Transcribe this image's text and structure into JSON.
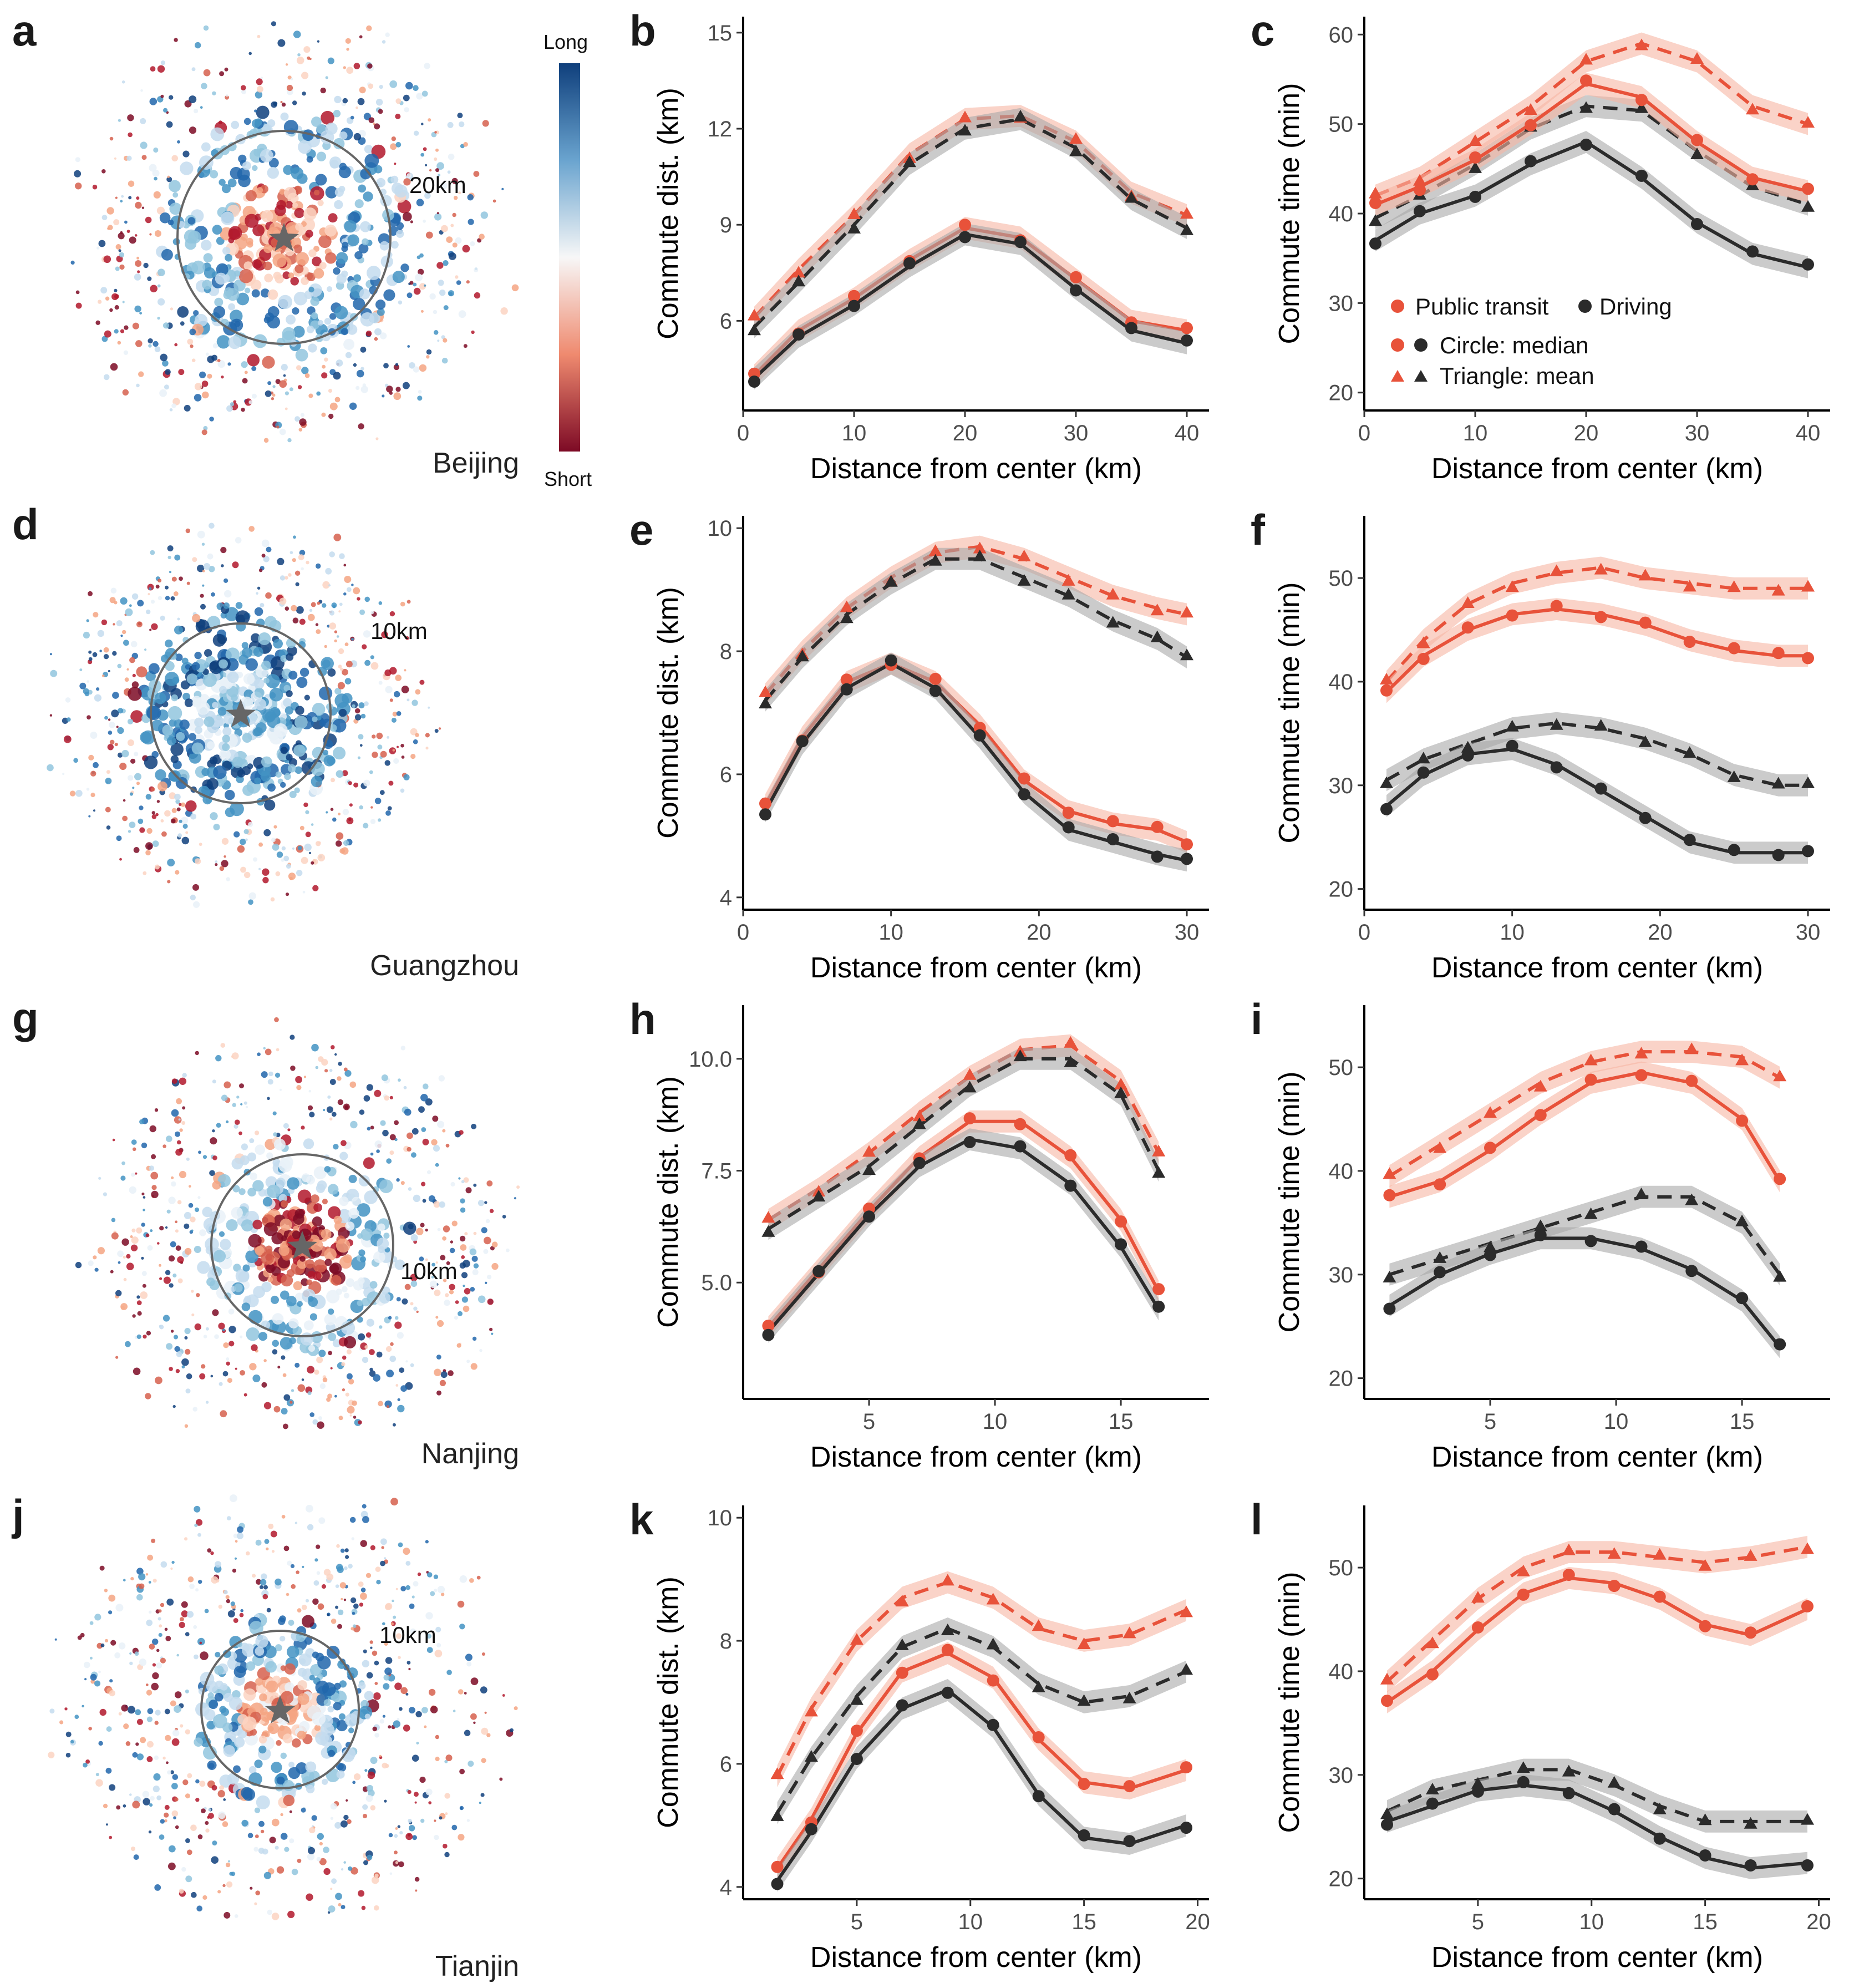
{
  "colors": {
    "transit": "#e8523a",
    "transit_light": "#f7b6a3",
    "driving": "#2b2b2b",
    "driving_light": "#a9a9a9",
    "map_long": "#2166ac",
    "map_short": "#b2182b",
    "circle": "#666666"
  },
  "colorbar": {
    "top_label": "Long",
    "bottom_label": "Short"
  },
  "legend": {
    "public_transit": "Public transit",
    "driving": "Driving",
    "median": "Circle: median",
    "mean": "Triangle: mean"
  },
  "maps": [
    {
      "letter": "a",
      "city": "Beijing",
      "scale": "20km"
    },
    {
      "letter": "d",
      "city": "Guangzhou",
      "scale": "10km"
    },
    {
      "letter": "g",
      "city": "Nanjing",
      "scale": "10km"
    },
    {
      "letter": "j",
      "city": "Tianjin",
      "scale": "10km"
    }
  ],
  "chart_data": [
    {
      "letter": "b",
      "type": "scatter",
      "city": "Beijing",
      "xlabel": "Distance from center (km)",
      "ylabel": "Commute dist. (km)",
      "xlim": [
        0,
        42
      ],
      "ylim": [
        3.2,
        15.5
      ],
      "xticks": [
        0,
        10,
        20,
        30,
        40
      ],
      "yticks": [
        6,
        9,
        12,
        15
      ],
      "ytick_labels": [
        "6",
        "9",
        "12",
        "15"
      ],
      "series": [
        {
          "name": "Public transit mean",
          "x": [
            1,
            5,
            10,
            15,
            20,
            25,
            30,
            35,
            40
          ],
          "y": [
            6.1,
            7.6,
            9.3,
            11.2,
            12.3,
            12.4,
            11.6,
            10.0,
            9.3
          ]
        },
        {
          "name": "Driving mean",
          "x": [
            1,
            5,
            10,
            15,
            20,
            25,
            30,
            35,
            40
          ],
          "y": [
            5.8,
            7.2,
            9.0,
            10.9,
            12.0,
            12.3,
            11.4,
            9.8,
            8.9
          ]
        },
        {
          "name": "Public transit median",
          "x": [
            1,
            5,
            10,
            15,
            20,
            25,
            30,
            35,
            40
          ],
          "y": [
            4.3,
            5.7,
            6.7,
            7.9,
            8.9,
            8.6,
            7.3,
            6.0,
            5.7
          ]
        },
        {
          "name": "Driving median",
          "x": [
            1,
            5,
            10,
            15,
            20,
            25,
            30,
            35,
            40
          ],
          "y": [
            4.2,
            5.5,
            6.5,
            7.7,
            8.7,
            8.4,
            7.0,
            5.7,
            5.3
          ]
        }
      ]
    },
    {
      "letter": "c",
      "type": "scatter",
      "city": "Beijing",
      "xlabel": "Distance from center (km)",
      "ylabel": "Commute time (min)",
      "xlim": [
        0,
        42
      ],
      "ylim": [
        18,
        62
      ],
      "xticks": [
        0,
        10,
        20,
        30,
        40
      ],
      "yticks": [
        20,
        30,
        40,
        50,
        60
      ],
      "ytick_labels": [
        "20",
        "30",
        "40",
        "50",
        "60"
      ],
      "series": [
        {
          "name": "Public transit mean",
          "x": [
            1,
            5,
            10,
            15,
            20,
            25,
            30,
            35,
            40
          ],
          "y": [
            42,
            44,
            48,
            52,
            57,
            59,
            57,
            52,
            50
          ]
        },
        {
          "name": "Driving mean",
          "x": [
            1,
            5,
            10,
            15,
            20,
            25,
            30,
            35,
            40
          ],
          "y": [
            39.5,
            42,
            45.5,
            49.5,
            52,
            51.5,
            47,
            43,
            41
          ]
        },
        {
          "name": "Public transit median",
          "x": [
            1,
            5,
            10,
            15,
            20,
            25,
            30,
            35,
            40
          ],
          "y": [
            41,
            43,
            46,
            50,
            54.5,
            53,
            48,
            44,
            42.5
          ]
        },
        {
          "name": "Driving median",
          "x": [
            1,
            5,
            10,
            15,
            20,
            25,
            30,
            35,
            40
          ],
          "y": [
            37,
            40,
            42,
            45.5,
            48,
            44,
            39,
            35.5,
            34
          ]
        }
      ]
    },
    {
      "letter": "e",
      "type": "scatter",
      "city": "Guangzhou",
      "xlabel": "Distance from center (km)",
      "ylabel": "Commute dist. (km)",
      "xlim": [
        0,
        31.5
      ],
      "ylim": [
        3.8,
        10.2
      ],
      "xticks": [
        0,
        10,
        20,
        30
      ],
      "yticks": [
        4,
        6,
        8,
        10
      ],
      "ytick_labels": [
        "4",
        "6",
        "8",
        "10"
      ],
      "series": [
        {
          "name": "Public transit mean",
          "x": [
            1.5,
            4,
            7,
            10,
            13,
            16,
            19,
            22,
            25,
            28,
            30
          ],
          "y": [
            7.3,
            8.0,
            8.7,
            9.2,
            9.6,
            9.7,
            9.5,
            9.2,
            8.9,
            8.7,
            8.6
          ]
        },
        {
          "name": "Driving mean",
          "x": [
            1.5,
            4,
            7,
            10,
            13,
            16,
            19,
            22,
            25,
            28,
            30
          ],
          "y": [
            7.2,
            7.9,
            8.6,
            9.1,
            9.5,
            9.5,
            9.2,
            8.9,
            8.5,
            8.2,
            7.9
          ]
        },
        {
          "name": "Public transit median",
          "x": [
            1.5,
            4,
            7,
            10,
            13,
            16,
            19,
            22,
            25,
            28,
            30
          ],
          "y": [
            5.5,
            6.6,
            7.5,
            7.8,
            7.5,
            6.8,
            5.9,
            5.4,
            5.2,
            5.1,
            4.9
          ]
        },
        {
          "name": "Driving median",
          "x": [
            1.5,
            4,
            7,
            10,
            13,
            16,
            19,
            22,
            25,
            28,
            30
          ],
          "y": [
            5.4,
            6.5,
            7.4,
            7.8,
            7.4,
            6.6,
            5.7,
            5.1,
            4.9,
            4.7,
            4.6
          ]
        }
      ]
    },
    {
      "letter": "f",
      "type": "scatter",
      "city": "Guangzhou",
      "xlabel": "Distance from center (km)",
      "ylabel": "Commute time (min)",
      "xlim": [
        0,
        31.5
      ],
      "ylim": [
        18,
        56
      ],
      "xticks": [
        0,
        10,
        20,
        30
      ],
      "yticks": [
        20,
        30,
        40,
        50
      ],
      "ytick_labels": [
        "20",
        "30",
        "40",
        "50"
      ],
      "series": [
        {
          "name": "Public transit mean",
          "x": [
            1.5,
            4,
            7,
            10,
            13,
            16,
            19,
            22,
            25,
            28,
            30
          ],
          "y": [
            40,
            44,
            47.5,
            49.5,
            50.5,
            51,
            50,
            49.5,
            49,
            49,
            49
          ]
        },
        {
          "name": "Driving mean",
          "x": [
            1.5,
            4,
            7,
            10,
            13,
            16,
            19,
            22,
            25,
            28,
            30
          ],
          "y": [
            30.5,
            32.5,
            34,
            35.5,
            36,
            35.5,
            34.5,
            33,
            31,
            30,
            30
          ]
        },
        {
          "name": "Public transit median",
          "x": [
            1.5,
            4,
            7,
            10,
            13,
            16,
            19,
            22,
            25,
            28,
            30
          ],
          "y": [
            39,
            42.5,
            45,
            46.5,
            47,
            46.5,
            45.5,
            44,
            43,
            42.5,
            42.5
          ]
        },
        {
          "name": "Driving median",
          "x": [
            1.5,
            4,
            7,
            10,
            13,
            16,
            19,
            22,
            25,
            28,
            30
          ],
          "y": [
            28,
            31,
            33,
            33.5,
            32,
            29.5,
            27,
            24.5,
            23.5,
            23.5,
            23.5
          ]
        }
      ]
    },
    {
      "letter": "h",
      "type": "scatter",
      "city": "Nanjing",
      "xlabel": "Distance from center (km)",
      "ylabel": "Commute dist. (km)",
      "xlim": [
        0,
        18.5
      ],
      "ylim": [
        2.4,
        11.2
      ],
      "xticks": [
        5,
        10,
        15
      ],
      "yticks": [
        5,
        7.5,
        10
      ],
      "ytick_labels": [
        "5.0",
        "7.5",
        "10.0"
      ],
      "series": [
        {
          "name": "Public transit mean",
          "x": [
            1,
            3,
            5,
            7,
            9,
            11,
            13,
            15,
            16.5
          ],
          "y": [
            6.4,
            7.1,
            7.9,
            8.8,
            9.6,
            10.2,
            10.3,
            9.5,
            7.9
          ]
        },
        {
          "name": "Driving mean",
          "x": [
            1,
            3,
            5,
            7,
            9,
            11,
            13,
            15,
            16.5
          ],
          "y": [
            6.2,
            6.9,
            7.6,
            8.5,
            9.4,
            10.0,
            10.0,
            9.2,
            7.5
          ]
        },
        {
          "name": "Public transit median",
          "x": [
            1,
            3,
            5,
            7,
            9,
            11,
            13,
            15,
            16.5
          ],
          "y": [
            4.0,
            5.3,
            6.6,
            7.8,
            8.6,
            8.6,
            7.8,
            6.4,
            4.8
          ]
        },
        {
          "name": "Driving median",
          "x": [
            1,
            3,
            5,
            7,
            9,
            11,
            13,
            15,
            16.5
          ],
          "y": [
            3.9,
            5.2,
            6.5,
            7.6,
            8.2,
            8.0,
            7.2,
            5.8,
            4.4
          ]
        }
      ]
    },
    {
      "letter": "i",
      "type": "scatter",
      "city": "Nanjing",
      "xlabel": "Distance from center (km)",
      "ylabel": "Commute time (min)",
      "xlim": [
        0,
        18.5
      ],
      "ylim": [
        18,
        56
      ],
      "xticks": [
        5,
        10,
        15
      ],
      "yticks": [
        20,
        30,
        40,
        50
      ],
      "ytick_labels": [
        "20",
        "30",
        "40",
        "50"
      ],
      "series": [
        {
          "name": "Public transit mean",
          "x": [
            1,
            3,
            5,
            7,
            9,
            11,
            13,
            15,
            16.5
          ],
          "y": [
            39.5,
            42.5,
            45.5,
            48.5,
            50.5,
            51.5,
            51.5,
            51,
            49
          ]
        },
        {
          "name": "Driving mean",
          "x": [
            1,
            3,
            5,
            7,
            9,
            11,
            13,
            15,
            16.5
          ],
          "y": [
            30,
            31.5,
            33,
            34.5,
            36,
            37.5,
            37.5,
            35,
            30
          ]
        },
        {
          "name": "Public transit median",
          "x": [
            1,
            3,
            5,
            7,
            9,
            11,
            13,
            15,
            16.5
          ],
          "y": [
            37.5,
            39,
            42,
            45.5,
            48.5,
            49.5,
            48.5,
            45,
            39
          ]
        },
        {
          "name": "Driving median",
          "x": [
            1,
            3,
            5,
            7,
            9,
            11,
            13,
            15,
            16.5
          ],
          "y": [
            27,
            30,
            32,
            33.5,
            33.5,
            32.5,
            30.5,
            27.5,
            23
          ]
        }
      ]
    },
    {
      "letter": "k",
      "type": "scatter",
      "city": "Tianjin",
      "xlabel": "Distance from center (km)",
      "ylabel": "Commute dist. (km)",
      "xlim": [
        0,
        20.5
      ],
      "ylim": [
        3.8,
        10.2
      ],
      "xticks": [
        5,
        10,
        15,
        20
      ],
      "yticks": [
        4,
        6,
        8,
        10
      ],
      "ytick_labels": [
        "4",
        "6",
        "8",
        "10"
      ],
      "series": [
        {
          "name": "Public transit mean",
          "x": [
            1.5,
            3,
            5,
            7,
            9,
            11,
            13,
            15,
            17,
            19.5
          ],
          "y": [
            5.8,
            6.9,
            8.0,
            8.7,
            8.95,
            8.7,
            8.2,
            8.0,
            8.1,
            8.5
          ]
        },
        {
          "name": "Driving mean",
          "x": [
            1.5,
            3,
            5,
            7,
            9,
            11,
            13,
            15,
            17,
            19.5
          ],
          "y": [
            5.2,
            6.1,
            7.1,
            7.9,
            8.2,
            7.9,
            7.3,
            7.0,
            7.1,
            7.5
          ]
        },
        {
          "name": "Public transit median",
          "x": [
            1.5,
            3,
            5,
            7,
            9,
            11,
            13,
            15,
            17,
            19.5
          ],
          "y": [
            4.3,
            5.1,
            6.5,
            7.5,
            7.8,
            7.4,
            6.4,
            5.7,
            5.6,
            5.9
          ]
        },
        {
          "name": "Driving median",
          "x": [
            1.5,
            3,
            5,
            7,
            9,
            11,
            13,
            15,
            17,
            19.5
          ],
          "y": [
            4.1,
            4.9,
            6.1,
            6.9,
            7.2,
            6.6,
            5.5,
            4.8,
            4.7,
            5.0
          ]
        }
      ]
    },
    {
      "letter": "l",
      "type": "scatter",
      "city": "Tianjin",
      "xlabel": "Distance from center (km)",
      "ylabel": "Commute time (min)",
      "xlim": [
        0,
        20.5
      ],
      "ylim": [
        18,
        56
      ],
      "xticks": [
        5,
        10,
        15,
        20
      ],
      "yticks": [
        20,
        30,
        40,
        50
      ],
      "ytick_labels": [
        "20",
        "30",
        "40",
        "50"
      ],
      "series": [
        {
          "name": "Public transit mean",
          "x": [
            1,
            3,
            5,
            7,
            9,
            11,
            13,
            15,
            17,
            19.5
          ],
          "y": [
            39,
            43,
            47,
            50,
            51.5,
            51.5,
            51,
            50.5,
            51,
            52
          ]
        },
        {
          "name": "Driving mean",
          "x": [
            1,
            3,
            5,
            7,
            9,
            11,
            13,
            15,
            17,
            19.5
          ],
          "y": [
            26.5,
            28.5,
            29.5,
            30.5,
            30.5,
            29,
            27,
            25.5,
            25.5,
            25.5
          ]
        },
        {
          "name": "Public transit median",
          "x": [
            1,
            3,
            5,
            7,
            9,
            11,
            13,
            15,
            17,
            19.5
          ],
          "y": [
            37,
            40,
            44,
            47.5,
            49,
            48.5,
            47,
            44.5,
            43.5,
            46
          ]
        },
        {
          "name": "Driving median",
          "x": [
            1,
            3,
            5,
            7,
            9,
            11,
            13,
            15,
            17,
            19.5
          ],
          "y": [
            25.5,
            27,
            28.5,
            29,
            28.5,
            26.5,
            24,
            22,
            21,
            21.5
          ]
        }
      ]
    }
  ]
}
